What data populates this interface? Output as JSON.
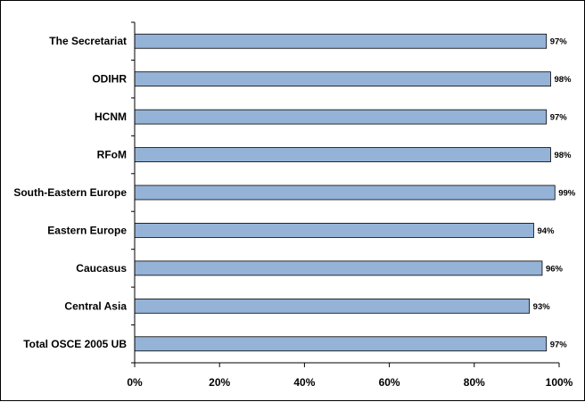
{
  "chart_data": {
    "type": "bar",
    "orientation": "horizontal",
    "categories": [
      "The Secretariat",
      "ODIHR",
      "HCNM",
      "RFoM",
      "South-Eastern Europe",
      "Eastern Europe",
      "Caucasus",
      "Central Asia",
      "Total OSCE 2005 UB"
    ],
    "values": [
      97,
      98,
      97,
      98,
      99,
      94,
      96,
      93,
      97
    ],
    "value_labels": [
      "97%",
      "98%",
      "97%",
      "98%",
      "99%",
      "94%",
      "96%",
      "93%",
      "97%"
    ],
    "x_ticks": [
      "0%",
      "20%",
      "40%",
      "60%",
      "80%",
      "100%"
    ],
    "xlim": [
      0,
      100
    ],
    "grid": false,
    "legend": "none",
    "bar_color": "#95B3D7",
    "bar_edge_color": "#000000",
    "title": "",
    "xlabel": "",
    "ylabel": ""
  }
}
